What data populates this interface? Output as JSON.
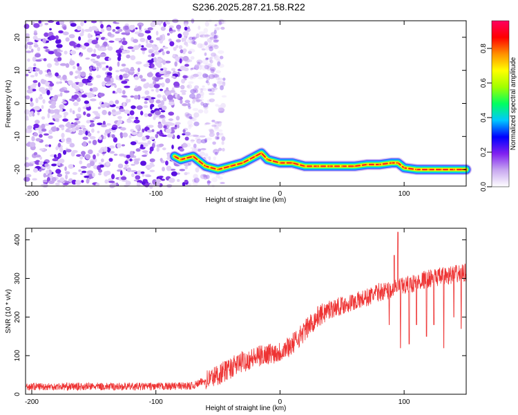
{
  "title": "S236.2025.287.21.58.R22",
  "chart_data": [
    {
      "type": "heatmap",
      "xlabel": "Height of straight line (km)",
      "ylabel": "Frequency (Hz)",
      "xlim": [
        -205,
        150
      ],
      "ylim": [
        -25,
        25
      ],
      "xticks": [
        -200,
        -100,
        0,
        100
      ],
      "yticks": [
        -20,
        -10,
        0,
        10,
        20
      ],
      "grid": false,
      "noise_region": {
        "x_end": -55,
        "y_range": [
          -25,
          25
        ]
      },
      "ridge_line": [
        {
          "x": -85,
          "y": -16
        },
        {
          "x": -80,
          "y": -17
        },
        {
          "x": -70,
          "y": -16
        },
        {
          "x": -60,
          "y": -19
        },
        {
          "x": -50,
          "y": -20
        },
        {
          "x": -40,
          "y": -19
        },
        {
          "x": -30,
          "y": -18
        },
        {
          "x": -20,
          "y": -16
        },
        {
          "x": -15,
          "y": -15
        },
        {
          "x": -10,
          "y": -17
        },
        {
          "x": 0,
          "y": -18
        },
        {
          "x": 10,
          "y": -18
        },
        {
          "x": 20,
          "y": -19
        },
        {
          "x": 30,
          "y": -19
        },
        {
          "x": 40,
          "y": -19
        },
        {
          "x": 50,
          "y": -19
        },
        {
          "x": 60,
          "y": -19
        },
        {
          "x": 70,
          "y": -18.5
        },
        {
          "x": 80,
          "y": -18.5
        },
        {
          "x": 90,
          "y": -18
        },
        {
          "x": 95,
          "y": -18
        },
        {
          "x": 100,
          "y": -19.5
        },
        {
          "x": 110,
          "y": -20
        },
        {
          "x": 120,
          "y": -20
        },
        {
          "x": 130,
          "y": -20
        },
        {
          "x": 140,
          "y": -20
        },
        {
          "x": 150,
          "y": -20
        }
      ],
      "colorbar": {
        "label": "Normalized spectral amplitude",
        "ticks": [
          0.0,
          0.2,
          0.4,
          0.6,
          0.8
        ],
        "tick_labels": [
          "0.0",
          "0.2",
          "0.4",
          "0.6",
          "0.8"
        ],
        "range": [
          0,
          0.96
        ],
        "colors": [
          "#ffffff",
          "#c8a8f0",
          "#8020f0",
          "#0000ff",
          "#00c8ff",
          "#00ff60",
          "#a0ff00",
          "#ffff00",
          "#ff9000",
          "#ff0000",
          "#ff0060"
        ]
      }
    },
    {
      "type": "line",
      "xlabel": "Height of straight line (km)",
      "ylabel": "SNR (10 * v/v)",
      "xlim": [
        -205,
        150
      ],
      "ylim": [
        0,
        430
      ],
      "xticks": [
        -200,
        -100,
        0,
        100
      ],
      "yticks": [
        0,
        100,
        200,
        300,
        400
      ],
      "grid": false,
      "series": [
        {
          "color": "#ee3333",
          "trend": [
            {
              "x": -205,
              "y": 20
            },
            {
              "x": -150,
              "y": 20
            },
            {
              "x": -100,
              "y": 20
            },
            {
              "x": -70,
              "y": 22
            },
            {
              "x": -50,
              "y": 50
            },
            {
              "x": -30,
              "y": 85
            },
            {
              "x": -10,
              "y": 105
            },
            {
              "x": 0,
              "y": 110
            },
            {
              "x": 10,
              "y": 130
            },
            {
              "x": 20,
              "y": 165
            },
            {
              "x": 30,
              "y": 200
            },
            {
              "x": 40,
              "y": 220
            },
            {
              "x": 50,
              "y": 230
            },
            {
              "x": 60,
              "y": 240
            },
            {
              "x": 70,
              "y": 250
            },
            {
              "x": 80,
              "y": 265
            },
            {
              "x": 90,
              "y": 270
            },
            {
              "x": 100,
              "y": 280
            },
            {
              "x": 110,
              "y": 290
            },
            {
              "x": 120,
              "y": 300
            },
            {
              "x": 130,
              "y": 305
            },
            {
              "x": 140,
              "y": 310
            },
            {
              "x": 150,
              "y": 315
            }
          ],
          "spikes": [
            {
              "x": 95,
              "y": 420
            },
            {
              "x": 97,
              "y": 120
            },
            {
              "x": 88,
              "y": 180
            },
            {
              "x": 104,
              "y": 130
            },
            {
              "x": 118,
              "y": 150
            },
            {
              "x": 124,
              "y": 180
            },
            {
              "x": 132,
              "y": 120
            },
            {
              "x": 140,
              "y": 200
            },
            {
              "x": 146,
              "y": 170
            },
            {
              "x": 92,
              "y": 360
            },
            {
              "x": 110,
              "y": 180
            }
          ]
        }
      ]
    }
  ]
}
